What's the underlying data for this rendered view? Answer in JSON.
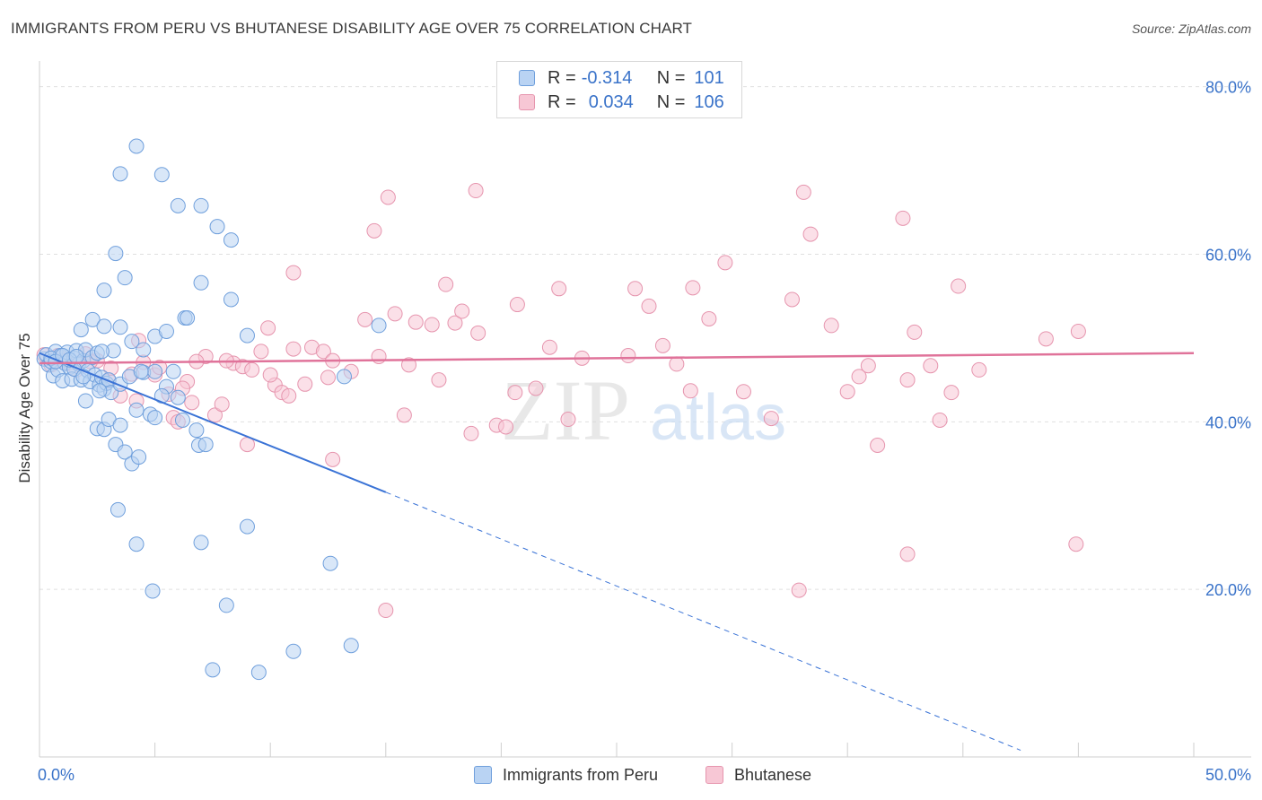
{
  "title": "IMMIGRANTS FROM PERU VS BHUTANESE DISABILITY AGE OVER 75 CORRELATION CHART",
  "source": "Source: ZipAtlas.com",
  "watermark": {
    "zip": "ZIP",
    "atlas": "atlas"
  },
  "legend": {
    "series1": {
      "r_label": "R = ",
      "r_value": "-0.314",
      "n_label": "N = ",
      "n_value": "101"
    },
    "series2": {
      "r_label": "R = ",
      "r_value": "0.034",
      "n_label": "N = ",
      "n_value": "106"
    }
  },
  "colors": {
    "blue_fill": "#b9d3f3",
    "blue_stroke": "#6f9fdc",
    "blue_line": "#3a73d6",
    "pink_fill": "#f7c7d5",
    "pink_stroke": "#e695ae",
    "pink_line": "#e0739a",
    "tick_label": "#3a73c9",
    "grid": "#e0e0e0"
  },
  "chart_data": {
    "type": "scatter",
    "title": "IMMIGRANTS FROM PERU VS BHUTANESE DISABILITY AGE OVER 75 CORRELATION CHART",
    "xlabel": "",
    "ylabel": "Disability Age Over 75",
    "xlim": [
      0,
      50
    ],
    "ylim": [
      0,
      82
    ],
    "x_tick_labels": [
      "0.0%",
      "50.0%"
    ],
    "y_ticks": [
      20,
      40,
      60,
      80
    ],
    "y_tick_labels": [
      "20.0%",
      "40.0%",
      "60.0%",
      "80.0%"
    ],
    "grid": true,
    "legend_position": "top-center",
    "series": [
      {
        "name": "Immigrants from Peru",
        "color": "#6f9fdc",
        "trend": {
          "x": [
            0,
            15
          ],
          "y": [
            48.2,
            31.6
          ],
          "dashed_to": [
            42.5,
            0.8
          ]
        },
        "points": [
          [
            0.2,
            47.5
          ],
          [
            0.3,
            48.0
          ],
          [
            0.4,
            46.8
          ],
          [
            0.5,
            47.2
          ],
          [
            0.6,
            45.5
          ],
          [
            0.7,
            48.4
          ],
          [
            0.8,
            46.2
          ],
          [
            0.9,
            47.9
          ],
          [
            1.0,
            44.9
          ],
          [
            1.1,
            47.0
          ],
          [
            1.2,
            48.3
          ],
          [
            1.3,
            46.5
          ],
          [
            1.4,
            45.1
          ],
          [
            1.5,
            47.6
          ],
          [
            1.6,
            48.5
          ],
          [
            1.7,
            46.9
          ],
          [
            1.8,
            45.0
          ],
          [
            1.9,
            47.3
          ],
          [
            2.0,
            48.6
          ],
          [
            2.1,
            46.1
          ],
          [
            2.2,
            44.8
          ],
          [
            2.3,
            47.7
          ],
          [
            2.4,
            45.6
          ],
          [
            2.5,
            48.2
          ],
          [
            2.6,
            44.4
          ],
          [
            2.7,
            45.3
          ],
          [
            2.8,
            43.9
          ],
          [
            2.9,
            44.6
          ],
          [
            3.0,
            45.0
          ],
          [
            3.1,
            43.5
          ],
          [
            1.8,
            51.0
          ],
          [
            2.3,
            52.2
          ],
          [
            2.8,
            51.4
          ],
          [
            3.5,
            51.3
          ],
          [
            4.0,
            49.6
          ],
          [
            4.5,
            48.6
          ],
          [
            5.0,
            50.2
          ],
          [
            5.5,
            50.8
          ],
          [
            6.3,
            52.4
          ],
          [
            9.0,
            50.3
          ],
          [
            14.7,
            51.5
          ],
          [
            2.0,
            42.5
          ],
          [
            2.5,
            39.2
          ],
          [
            2.8,
            39.1
          ],
          [
            3.0,
            40.3
          ],
          [
            3.5,
            39.6
          ],
          [
            3.3,
            37.3
          ],
          [
            3.7,
            36.4
          ],
          [
            4.0,
            35.0
          ],
          [
            4.3,
            35.8
          ],
          [
            4.5,
            45.9
          ],
          [
            4.8,
            40.9
          ],
          [
            5.0,
            40.5
          ],
          [
            5.5,
            44.2
          ],
          [
            5.3,
            43.1
          ],
          [
            5.8,
            46.0
          ],
          [
            6.0,
            42.9
          ],
          [
            6.2,
            40.2
          ],
          [
            6.8,
            39.0
          ],
          [
            6.9,
            37.2
          ],
          [
            7.2,
            37.3
          ],
          [
            13.2,
            45.4
          ],
          [
            5.0,
            46.0
          ],
          [
            3.2,
            48.5
          ],
          [
            2.7,
            48.4
          ],
          [
            1.5,
            46.3
          ],
          [
            3.5,
            44.5
          ],
          [
            4.2,
            41.4
          ],
          [
            2.6,
            43.7
          ],
          [
            1.9,
            45.4
          ],
          [
            3.9,
            45.4
          ],
          [
            4.4,
            46.0
          ],
          [
            4.2,
            72.9
          ],
          [
            3.5,
            69.6
          ],
          [
            5.3,
            69.5
          ],
          [
            6.0,
            65.8
          ],
          [
            7.0,
            65.8
          ],
          [
            7.7,
            63.3
          ],
          [
            8.3,
            61.7
          ],
          [
            3.3,
            60.1
          ],
          [
            3.7,
            57.2
          ],
          [
            2.8,
            55.7
          ],
          [
            7.0,
            56.6
          ],
          [
            8.3,
            54.6
          ],
          [
            6.4,
            52.4
          ],
          [
            3.4,
            29.5
          ],
          [
            4.2,
            25.4
          ],
          [
            7.0,
            25.6
          ],
          [
            9.0,
            27.5
          ],
          [
            12.6,
            23.1
          ],
          [
            4.9,
            19.8
          ],
          [
            8.1,
            18.1
          ],
          [
            7.5,
            10.4
          ],
          [
            9.5,
            10.1
          ],
          [
            11.0,
            12.6
          ],
          [
            13.5,
            13.3
          ],
          [
            0.5,
            47.6
          ],
          [
            0.7,
            47.2
          ],
          [
            1.0,
            47.9
          ],
          [
            1.3,
            47.4
          ],
          [
            1.6,
            47.8
          ]
        ]
      },
      {
        "name": "Bhutanese",
        "color": "#e695ae",
        "trend": {
          "x": [
            0,
            50
          ],
          "y": [
            47.0,
            48.2
          ]
        },
        "points": [
          [
            0.2,
            48.0
          ],
          [
            0.5,
            46.8
          ],
          [
            0.8,
            47.9
          ],
          [
            1.2,
            47.0
          ],
          [
            1.6,
            46.2
          ],
          [
            2.0,
            48.1
          ],
          [
            2.5,
            47.3
          ],
          [
            3.0,
            44.9
          ],
          [
            3.5,
            43.1
          ],
          [
            4.0,
            45.7
          ],
          [
            4.2,
            42.5
          ],
          [
            4.3,
            49.7
          ],
          [
            5.0,
            45.6
          ],
          [
            5.6,
            43.3
          ],
          [
            5.8,
            40.5
          ],
          [
            6.0,
            40.0
          ],
          [
            6.4,
            44.8
          ],
          [
            6.6,
            42.3
          ],
          [
            7.2,
            47.8
          ],
          [
            7.6,
            40.8
          ],
          [
            7.9,
            42.1
          ],
          [
            8.4,
            47.0
          ],
          [
            8.8,
            46.6
          ],
          [
            9.2,
            46.2
          ],
          [
            9.6,
            48.4
          ],
          [
            9.9,
            51.2
          ],
          [
            10.2,
            44.4
          ],
          [
            10.5,
            43.5
          ],
          [
            10.8,
            43.1
          ],
          [
            11.0,
            48.7
          ],
          [
            11.5,
            44.5
          ],
          [
            11.8,
            48.9
          ],
          [
            12.3,
            48.4
          ],
          [
            12.5,
            45.3
          ],
          [
            12.7,
            47.3
          ],
          [
            13.5,
            46.0
          ],
          [
            14.1,
            52.2
          ],
          [
            14.7,
            47.8
          ],
          [
            15.4,
            52.9
          ],
          [
            15.8,
            40.8
          ],
          [
            16.0,
            46.8
          ],
          [
            16.3,
            51.9
          ],
          [
            17.0,
            51.6
          ],
          [
            17.3,
            45.0
          ],
          [
            18.0,
            51.8
          ],
          [
            18.3,
            53.2
          ],
          [
            18.7,
            38.6
          ],
          [
            19.0,
            50.6
          ],
          [
            19.8,
            39.6
          ],
          [
            20.2,
            39.4
          ],
          [
            20.6,
            43.5
          ],
          [
            21.5,
            44.0
          ],
          [
            22.1,
            48.9
          ],
          [
            22.5,
            55.9
          ],
          [
            22.9,
            40.3
          ],
          [
            23.5,
            47.6
          ],
          [
            25.5,
            47.9
          ],
          [
            25.8,
            55.9
          ],
          [
            26.4,
            53.8
          ],
          [
            27.0,
            49.1
          ],
          [
            27.6,
            46.9
          ],
          [
            28.2,
            43.7
          ],
          [
            29.0,
            52.3
          ],
          [
            29.7,
            59.0
          ],
          [
            30.5,
            43.6
          ],
          [
            31.7,
            40.4
          ],
          [
            32.6,
            54.6
          ],
          [
            33.1,
            67.4
          ],
          [
            33.4,
            62.4
          ],
          [
            34.3,
            51.5
          ],
          [
            35.0,
            43.6
          ],
          [
            35.5,
            45.4
          ],
          [
            35.9,
            46.7
          ],
          [
            36.3,
            37.2
          ],
          [
            37.4,
            64.3
          ],
          [
            37.6,
            45.0
          ],
          [
            37.9,
            50.7
          ],
          [
            38.6,
            46.7
          ],
          [
            39.0,
            40.2
          ],
          [
            39.5,
            43.5
          ],
          [
            39.8,
            56.2
          ],
          [
            40.7,
            46.2
          ],
          [
            43.6,
            49.9
          ],
          [
            44.9,
            25.4
          ],
          [
            45.0,
            50.8
          ],
          [
            37.6,
            24.2
          ],
          [
            32.9,
            19.9
          ],
          [
            12.7,
            35.5
          ],
          [
            15.0,
            17.5
          ],
          [
            11.0,
            57.8
          ],
          [
            14.5,
            62.8
          ],
          [
            15.1,
            66.8
          ],
          [
            18.9,
            67.6
          ],
          [
            17.6,
            56.4
          ],
          [
            20.7,
            54.0
          ],
          [
            28.3,
            56.0
          ],
          [
            6.8,
            47.2
          ],
          [
            8.1,
            47.3
          ],
          [
            5.2,
            46.5
          ],
          [
            10.0,
            45.6
          ],
          [
            9.0,
            37.3
          ],
          [
            6.2,
            44.0
          ],
          [
            4.5,
            47.1
          ],
          [
            3.1,
            46.4
          ],
          [
            2.2,
            47.2
          ],
          [
            1.0,
            47.3
          ]
        ]
      }
    ]
  }
}
